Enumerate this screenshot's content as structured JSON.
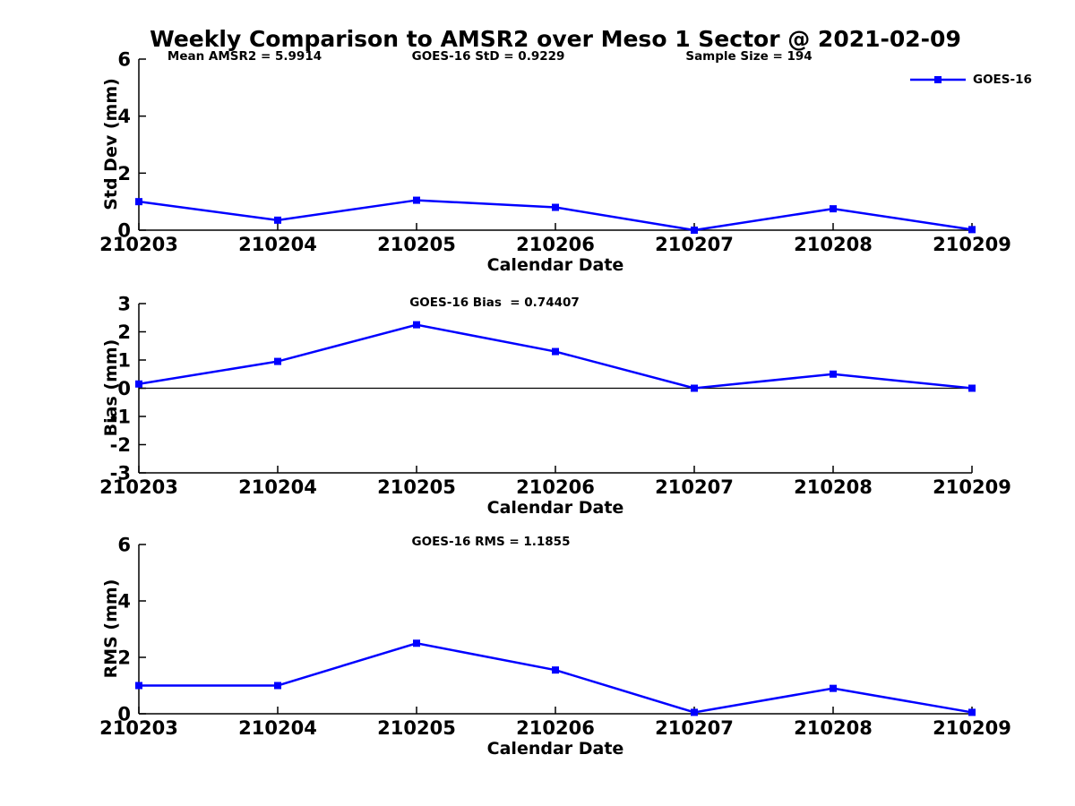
{
  "title": "Weekly Comparison to AMSR2 over Meso 1 Sector @ 2021-02-09",
  "legend": {
    "label": "GOES-16",
    "marker": "filled-square",
    "color": "#0000FF"
  },
  "colors": {
    "series": "#0000FF",
    "axis": "#000000",
    "text": "#000000",
    "background": "#FFFFFF"
  },
  "chart_data": [
    {
      "type": "line",
      "ylabel": "Std Dev (mm)",
      "xlabel": "Calendar Date",
      "categories": [
        "210203",
        "210204",
        "210205",
        "210206",
        "210207",
        "210208",
        "210209"
      ],
      "series": [
        {
          "name": "GOES-16",
          "values": [
            1.0,
            0.35,
            1.05,
            0.8,
            0.0,
            0.75,
            0.02
          ]
        }
      ],
      "ylim": [
        0,
        6
      ],
      "yticks": [
        0,
        2,
        4,
        6
      ],
      "annotations": [
        "Mean AMSR2 = 5.9914",
        "GOES-16 StD = 0.9229",
        "Sample Size = 194"
      ],
      "zero_line": false,
      "grid": false,
      "legend_position": "top-right"
    },
    {
      "type": "line",
      "ylabel": "Bias (mm)",
      "xlabel": "Calendar Date",
      "categories": [
        "210203",
        "210204",
        "210205",
        "210206",
        "210207",
        "210208",
        "210209"
      ],
      "series": [
        {
          "name": "GOES-16",
          "values": [
            0.15,
            0.95,
            2.25,
            1.3,
            0.0,
            0.5,
            0.0
          ]
        }
      ],
      "ylim": [
        -3,
        3
      ],
      "yticks": [
        -3,
        -2,
        -1,
        0,
        1,
        2,
        3
      ],
      "annotations": [
        "GOES-16 Bias  = 0.74407"
      ],
      "zero_line": true,
      "grid": false,
      "legend_position": "none"
    },
    {
      "type": "line",
      "ylabel": "RMS (mm)",
      "xlabel": "Calendar Date",
      "categories": [
        "210203",
        "210204",
        "210205",
        "210206",
        "210207",
        "210208",
        "210209"
      ],
      "series": [
        {
          "name": "GOES-16",
          "values": [
            1.0,
            1.0,
            2.5,
            1.55,
            0.05,
            0.9,
            0.05
          ]
        }
      ],
      "ylim": [
        0,
        6
      ],
      "yticks": [
        0,
        2,
        4,
        6
      ],
      "annotations": [
        "GOES-16 RMS = 1.1855"
      ],
      "zero_line": false,
      "grid": false,
      "legend_position": "none"
    }
  ]
}
